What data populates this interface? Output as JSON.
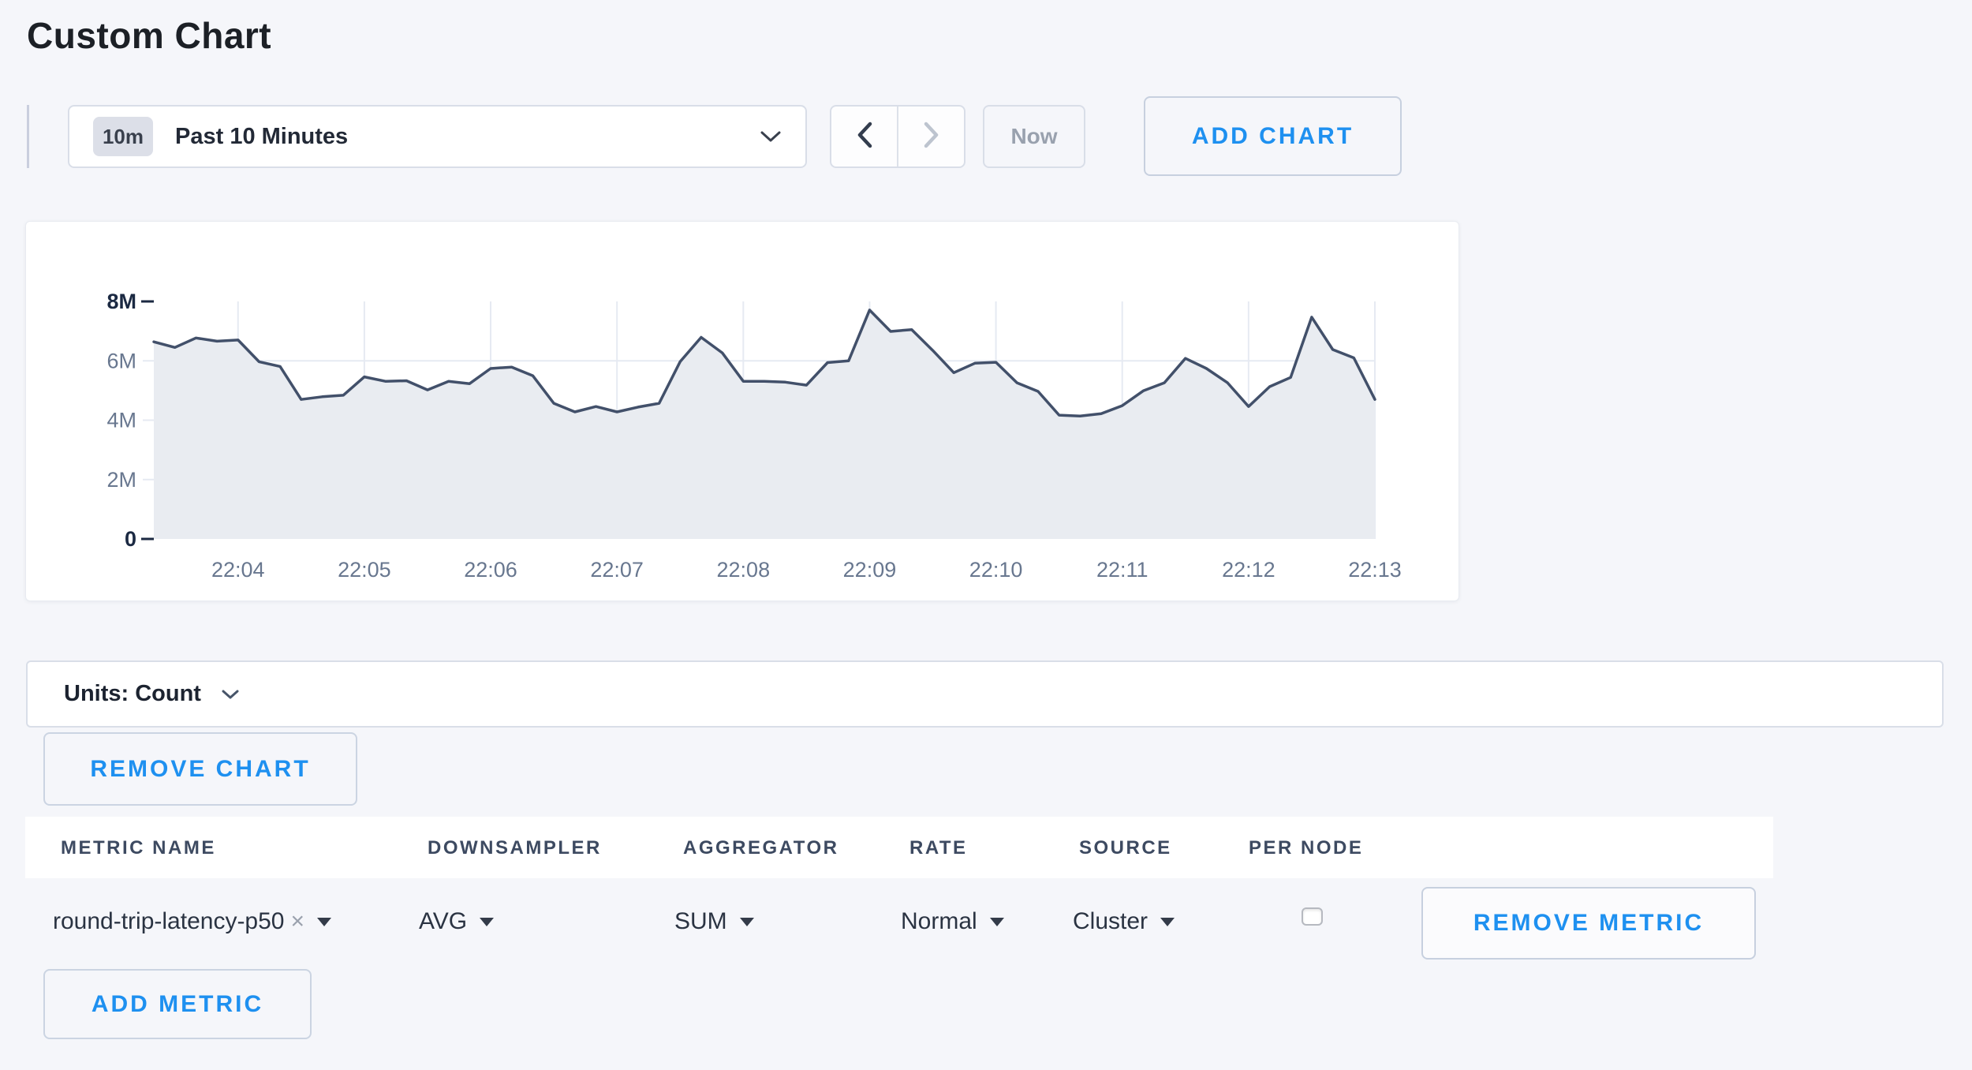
{
  "page": {
    "title": "Custom Chart",
    "background": "#f5f6fa",
    "accent_blue": "#1e90f0"
  },
  "time_controls": {
    "range_badge": "10m",
    "range_label": "Past 10 Minutes",
    "now_label": "Now",
    "add_chart_label": "ADD CHART"
  },
  "units_bar": {
    "label": "Units: Count"
  },
  "remove_chart_label": "REMOVE CHART",
  "chart_data": {
    "type": "area",
    "title": "",
    "xlabel": "",
    "ylabel": "count",
    "x_start": "22:03:20",
    "x_end": "22:13:00",
    "interval_seconds": 10,
    "x_tick_labels": [
      "22:04",
      "22:05",
      "22:06",
      "22:07",
      "22:08",
      "22:09",
      "22:10",
      "22:11",
      "22:12",
      "22:13"
    ],
    "y_tick_labels": [
      "8M",
      "6M",
      "4M",
      "2M",
      "0"
    ],
    "y_tick_values_millions": [
      8,
      6,
      4,
      2,
      0
    ],
    "ylim_millions": [
      0,
      8
    ],
    "grid": true,
    "legend_position": "none",
    "series": [
      {
        "name": "round-trip-latency-p50",
        "values_millions": [
          6.64,
          6.45,
          6.77,
          6.66,
          6.7,
          5.97,
          5.81,
          4.7,
          4.79,
          4.84,
          5.46,
          5.31,
          5.33,
          5.02,
          5.31,
          5.23,
          5.74,
          5.79,
          5.5,
          4.57,
          4.28,
          4.46,
          4.28,
          4.44,
          4.57,
          5.97,
          6.79,
          6.27,
          5.31,
          5.31,
          5.28,
          5.18,
          5.94,
          6.0,
          7.71,
          6.99,
          7.05,
          6.35,
          5.6,
          5.92,
          5.95,
          5.26,
          4.97,
          4.17,
          4.14,
          4.22,
          4.49,
          4.99,
          5.26,
          6.08,
          5.74,
          5.26,
          4.46,
          5.13,
          5.44,
          7.47,
          6.38,
          6.1,
          4.7
        ]
      }
    ],
    "colors": {
      "line": "#42506a",
      "fill": "#e9ecf1",
      "grid": "#e6eaf2",
      "tick_dark": "#1b2942",
      "label_major": "#1b2942",
      "label_minor": "#68778f"
    }
  },
  "metrics_table": {
    "headers": [
      "METRIC NAME",
      "DOWNSAMPLER",
      "AGGREGATOR",
      "RATE",
      "SOURCE",
      "PER NODE"
    ],
    "rows": [
      {
        "metric_name": "round-trip-latency-p50",
        "close": "×",
        "downsampler": "AVG",
        "aggregator": "SUM",
        "rate": "Normal",
        "source": "Cluster",
        "per_node_checked": false,
        "remove_label": "REMOVE METRIC"
      }
    ],
    "add_metric_label": "ADD METRIC"
  }
}
